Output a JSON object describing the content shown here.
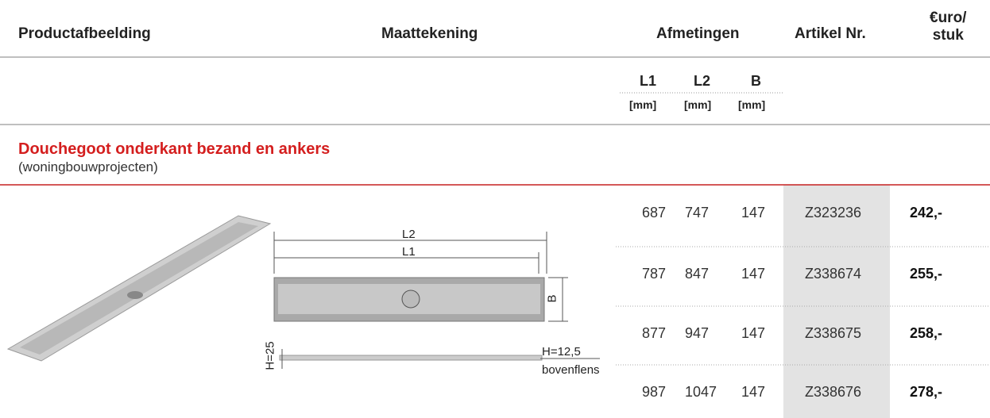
{
  "header": {
    "columns": [
      "Productafbeelding",
      "Maattekening",
      "Afmetingen",
      "Artikel Nr."
    ],
    "price_lines": [
      "€uro/",
      "stuk"
    ]
  },
  "subheader": {
    "dims": [
      "L1",
      "L2",
      "B"
    ],
    "units": [
      "[mm]",
      "[mm]",
      "[mm]"
    ]
  },
  "section": {
    "title": "Douchegoot onderkant bezand en ankers",
    "subtitle": "(woningbouwprojecten)"
  },
  "drawing": {
    "l2": "L2",
    "l1": "L1",
    "b": "B",
    "h": "H=25",
    "h2": "H=12,5",
    "flange": "bovenflens"
  },
  "table": {
    "rows": [
      [
        "687",
        "747",
        "147",
        "Z323236",
        "242,-"
      ],
      [
        "787",
        "847",
        "147",
        "Z338674",
        "255,-"
      ],
      [
        "877",
        "947",
        "147",
        "Z338675",
        "258,-"
      ],
      [
        "987",
        "1047",
        "147",
        "Z338676",
        "278,-"
      ]
    ]
  }
}
